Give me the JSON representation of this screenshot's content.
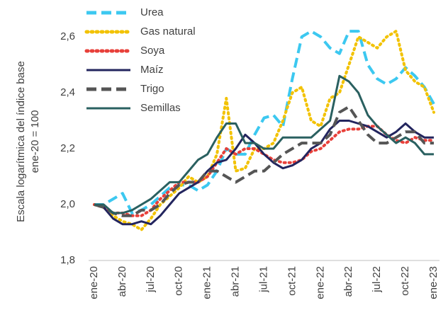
{
  "chart_data": {
    "type": "line",
    "y_label": [
      "Escala logarítmica del índice base",
      "ene-20 = 100"
    ],
    "categories": [
      "ene-20",
      null,
      null,
      "abr-20",
      null,
      null,
      "jul-20",
      null,
      null,
      "oct-20",
      null,
      null,
      "ene-21",
      null,
      null,
      "abr-21",
      null,
      null,
      "jul-21",
      null,
      null,
      "oct-21",
      null,
      null,
      "ene-22",
      null,
      null,
      "abr-22",
      null,
      null,
      "jul-22",
      null,
      null,
      "oct-22",
      null,
      null,
      "ene-23"
    ],
    "ylim": [
      1.8,
      2.7
    ],
    "yticks": [
      {
        "value": 1.8,
        "label": "1,8"
      },
      {
        "value": 2.0,
        "label": "2,0"
      },
      {
        "value": 2.2,
        "label": "2,2"
      },
      {
        "value": 2.4,
        "label": "2,4"
      },
      {
        "value": 2.6,
        "label": "2,6"
      }
    ],
    "legend": "top-left",
    "series": [
      {
        "name": "Urea",
        "color": "#3cc8f0",
        "style": "dashed",
        "values": [
          2.0,
          2.0,
          2.02,
          2.04,
          1.97,
          1.98,
          2.0,
          2.03,
          2.06,
          2.07,
          2.07,
          2.05,
          2.07,
          2.12,
          2.2,
          2.18,
          2.18,
          2.25,
          2.31,
          2.32,
          2.28,
          2.45,
          2.6,
          2.62,
          2.6,
          2.56,
          2.54,
          2.62,
          2.62,
          2.5,
          2.45,
          2.43,
          2.45,
          2.49,
          2.46,
          2.42,
          2.36
        ]
      },
      {
        "name": "Gas natural",
        "color": "#f2c200",
        "style": "dotted",
        "values": [
          2.0,
          1.99,
          1.96,
          1.94,
          1.93,
          1.91,
          1.95,
          2.0,
          2.03,
          2.06,
          2.1,
          2.08,
          2.1,
          2.18,
          2.38,
          2.12,
          2.13,
          2.2,
          2.2,
          2.22,
          2.3,
          2.4,
          2.42,
          2.3,
          2.28,
          2.38,
          2.4,
          2.5,
          2.6,
          2.58,
          2.56,
          2.6,
          2.62,
          2.48,
          2.44,
          2.42,
          2.33
        ]
      },
      {
        "name": "Soya",
        "color": "#e8403a",
        "style": "dotted",
        "values": [
          2.0,
          1.99,
          1.97,
          1.97,
          1.96,
          1.96,
          1.98,
          2.02,
          2.05,
          2.08,
          2.08,
          2.08,
          2.1,
          2.15,
          2.2,
          2.18,
          2.2,
          2.2,
          2.18,
          2.16,
          2.15,
          2.15,
          2.16,
          2.19,
          2.2,
          2.23,
          2.26,
          2.27,
          2.27,
          2.28,
          2.28,
          2.25,
          2.23,
          2.22,
          2.24,
          2.23,
          2.23
        ]
      },
      {
        "name": "Maíz",
        "color": "#23255e",
        "style": "solid",
        "values": [
          2.0,
          1.99,
          1.95,
          1.93,
          1.93,
          1.94,
          1.93,
          1.96,
          2.0,
          2.04,
          2.06,
          2.08,
          2.12,
          2.15,
          2.16,
          2.2,
          2.25,
          2.22,
          2.18,
          2.15,
          2.13,
          2.14,
          2.16,
          2.2,
          2.22,
          2.27,
          2.3,
          2.3,
          2.29,
          2.28,
          2.26,
          2.24,
          2.26,
          2.29,
          2.26,
          2.24,
          2.24
        ]
      },
      {
        "name": "Trigo",
        "color": "#555555",
        "style": "dashed",
        "values": [
          2.0,
          1.99,
          1.97,
          1.96,
          1.96,
          1.98,
          1.98,
          2.0,
          2.04,
          2.07,
          2.08,
          2.08,
          2.12,
          2.12,
          2.1,
          2.08,
          2.1,
          2.12,
          2.12,
          2.15,
          2.18,
          2.2,
          2.22,
          2.22,
          2.22,
          2.25,
          2.33,
          2.35,
          2.3,
          2.25,
          2.22,
          2.22,
          2.24,
          2.26,
          2.26,
          2.22,
          2.22
        ]
      },
      {
        "name": "Semillas",
        "color": "#2a6060",
        "style": "solid",
        "values": [
          2.0,
          2.0,
          1.97,
          1.97,
          1.98,
          2.0,
          2.02,
          2.05,
          2.08,
          2.08,
          2.12,
          2.16,
          2.18,
          2.24,
          2.29,
          2.29,
          2.22,
          2.22,
          2.2,
          2.2,
          2.24,
          2.24,
          2.24,
          2.24,
          2.27,
          2.3,
          2.46,
          2.44,
          2.4,
          2.32,
          2.28,
          2.25,
          2.22,
          2.24,
          2.22,
          2.18,
          2.18
        ]
      }
    ]
  }
}
